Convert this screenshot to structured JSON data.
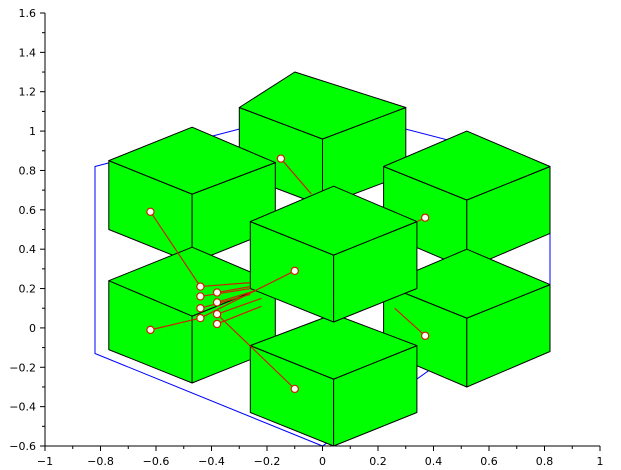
{
  "chart_data": {
    "type": "scatter",
    "title": "",
    "xlabel": "",
    "ylabel": "",
    "xlim": [
      -1,
      1
    ],
    "ylim": [
      -0.6,
      1.6
    ],
    "x_ticks": [
      -1,
      -0.8,
      -0.6,
      -0.4,
      -0.2,
      0,
      0.2,
      0.4,
      0.6,
      0.8,
      1
    ],
    "x_tick_labels": [
      "−1",
      "−0.8",
      "−0.6",
      "−0.4",
      "−0.2",
      "0",
      "0.2",
      "0.4",
      "0.6",
      "0.8",
      "1"
    ],
    "y_ticks": [
      -0.6,
      -0.4,
      -0.2,
      0,
      0.2,
      0.4,
      0.6,
      0.8,
      1,
      1.2,
      1.4,
      1.6
    ],
    "y_tick_labels": [
      "−0.6",
      "−0.4",
      "−0.2",
      "0",
      "0.2",
      "0.4",
      "0.6",
      "0.8",
      "1",
      "1.2",
      "1.4",
      "1.6"
    ],
    "grid": false,
    "colors": {
      "cube": "#00ff00",
      "edge": "#000000",
      "bounding_box": "#0000ff",
      "link": "#cc2200",
      "marker_fill": "#ffffff"
    },
    "bounding_box": [
      [
        -0.82,
        0.82
      ],
      [
        0.0,
        1.12
      ],
      [
        0.82,
        0.82
      ],
      [
        0.82,
        0.22
      ],
      [
        0.0,
        -0.6
      ],
      [
        -0.82,
        -0.13
      ]
    ],
    "cubes": [
      {
        "top": [
          [
            -0.1,
            1.3
          ],
          [
            0.3,
            1.12
          ],
          [
            0.0,
            0.96
          ],
          [
            -0.3,
            1.12
          ]
        ],
        "front": [
          [
            -0.3,
            1.12
          ],
          [
            0.0,
            0.96
          ],
          [
            0.0,
            0.62
          ],
          [
            -0.3,
            0.78
          ]
        ],
        "side": [
          [
            0.0,
            0.96
          ],
          [
            0.3,
            1.12
          ],
          [
            0.3,
            0.78
          ],
          [
            0.0,
            0.62
          ]
        ]
      },
      {
        "top": [
          [
            -0.47,
            1.02
          ],
          [
            -0.17,
            0.84
          ],
          [
            -0.47,
            0.68
          ],
          [
            -0.77,
            0.85
          ]
        ],
        "front": [
          [
            -0.77,
            0.85
          ],
          [
            -0.47,
            0.68
          ],
          [
            -0.47,
            0.33
          ],
          [
            -0.77,
            0.5
          ]
        ],
        "side": [
          [
            -0.47,
            0.68
          ],
          [
            -0.17,
            0.84
          ],
          [
            -0.17,
            0.5
          ],
          [
            -0.47,
            0.33
          ]
        ]
      },
      {
        "top": [
          [
            0.52,
            1.0
          ],
          [
            0.82,
            0.82
          ],
          [
            0.52,
            0.65
          ],
          [
            0.22,
            0.82
          ]
        ],
        "front": [
          [
            0.22,
            0.82
          ],
          [
            0.52,
            0.65
          ],
          [
            0.52,
            0.3
          ],
          [
            0.22,
            0.48
          ]
        ],
        "side": [
          [
            0.52,
            0.65
          ],
          [
            0.82,
            0.82
          ],
          [
            0.82,
            0.48
          ],
          [
            0.52,
            0.3
          ]
        ]
      },
      {
        "top": [
          [
            -0.47,
            0.41
          ],
          [
            -0.17,
            0.23
          ],
          [
            -0.47,
            0.06
          ],
          [
            -0.77,
            0.24
          ]
        ],
        "front": [
          [
            -0.77,
            0.24
          ],
          [
            -0.47,
            0.06
          ],
          [
            -0.47,
            -0.28
          ],
          [
            -0.77,
            -0.11
          ]
        ],
        "side": [
          [
            -0.47,
            0.06
          ],
          [
            -0.17,
            0.23
          ],
          [
            -0.17,
            -0.11
          ],
          [
            -0.47,
            -0.28
          ]
        ]
      },
      {
        "top": [
          [
            0.52,
            0.4
          ],
          [
            0.82,
            0.22
          ],
          [
            0.52,
            0.05
          ],
          [
            0.22,
            0.22
          ]
        ],
        "front": [
          [
            0.22,
            0.22
          ],
          [
            0.52,
            0.05
          ],
          [
            0.52,
            -0.3
          ],
          [
            0.22,
            -0.12
          ]
        ],
        "side": [
          [
            0.52,
            0.05
          ],
          [
            0.82,
            0.22
          ],
          [
            0.82,
            -0.12
          ],
          [
            0.52,
            -0.3
          ]
        ]
      },
      {
        "top": [
          [
            0.04,
            0.07
          ],
          [
            0.34,
            -0.09
          ],
          [
            0.04,
            -0.26
          ],
          [
            -0.26,
            -0.09
          ]
        ],
        "front": [
          [
            -0.26,
            -0.09
          ],
          [
            0.04,
            -0.26
          ],
          [
            0.04,
            -0.6
          ],
          [
            -0.26,
            -0.43
          ]
        ],
        "side": [
          [
            0.04,
            -0.26
          ],
          [
            0.34,
            -0.09
          ],
          [
            0.34,
            -0.43
          ],
          [
            0.04,
            -0.6
          ]
        ]
      },
      {
        "top": [
          [
            0.04,
            0.72
          ],
          [
            0.34,
            0.54
          ],
          [
            0.04,
            0.37
          ],
          [
            -0.26,
            0.54
          ]
        ],
        "front": [
          [
            -0.26,
            0.54
          ],
          [
            0.04,
            0.37
          ],
          [
            0.04,
            0.03
          ],
          [
            -0.26,
            0.2
          ]
        ],
        "side": [
          [
            0.04,
            0.37
          ],
          [
            0.34,
            0.54
          ],
          [
            0.34,
            0.2
          ],
          [
            0.04,
            0.03
          ]
        ]
      }
    ],
    "links": [
      [
        [
          -0.62,
          0.59
        ],
        [
          -0.44,
          0.21
        ]
      ],
      [
        [
          -0.62,
          -0.01
        ],
        [
          -0.44,
          0.05
        ]
      ],
      [
        [
          -0.44,
          0.21
        ],
        [
          -0.26,
          0.23
        ]
      ],
      [
        [
          -0.44,
          0.16
        ],
        [
          -0.26,
          0.2
        ]
      ],
      [
        [
          -0.44,
          0.1
        ],
        [
          -0.26,
          0.17
        ]
      ],
      [
        [
          -0.38,
          0.18
        ],
        [
          -0.26,
          0.21
        ]
      ],
      [
        [
          -0.38,
          0.13
        ],
        [
          -0.24,
          0.19
        ]
      ],
      [
        [
          -0.38,
          0.07
        ],
        [
          -0.22,
          0.15
        ]
      ],
      [
        [
          -0.38,
          0.02
        ],
        [
          -0.22,
          0.11
        ]
      ],
      [
        [
          -0.44,
          0.05
        ],
        [
          -0.1,
          0.29
        ]
      ],
      [
        [
          -0.38,
          0.07
        ],
        [
          -0.1,
          -0.31
        ]
      ],
      [
        [
          -0.15,
          0.86
        ],
        [
          -0.04,
          0.68
        ]
      ],
      [
        [
          0.37,
          0.56
        ],
        [
          0.34,
          0.54
        ]
      ],
      [
        [
          0.37,
          -0.04
        ],
        [
          0.26,
          0.1
        ]
      ]
    ],
    "points": [
      {
        "x": -0.62,
        "y": 0.59
      },
      {
        "x": -0.62,
        "y": -0.01
      },
      {
        "x": -0.44,
        "y": 0.21
      },
      {
        "x": -0.44,
        "y": 0.16
      },
      {
        "x": -0.44,
        "y": 0.1
      },
      {
        "x": -0.44,
        "y": 0.05
      },
      {
        "x": -0.38,
        "y": 0.18
      },
      {
        "x": -0.38,
        "y": 0.13
      },
      {
        "x": -0.38,
        "y": 0.07
      },
      {
        "x": -0.38,
        "y": 0.02
      },
      {
        "x": -0.1,
        "y": 0.29
      },
      {
        "x": -0.1,
        "y": -0.31
      },
      {
        "x": -0.15,
        "y": 0.86
      },
      {
        "x": 0.37,
        "y": 0.56
      },
      {
        "x": 0.37,
        "y": -0.04
      }
    ]
  }
}
